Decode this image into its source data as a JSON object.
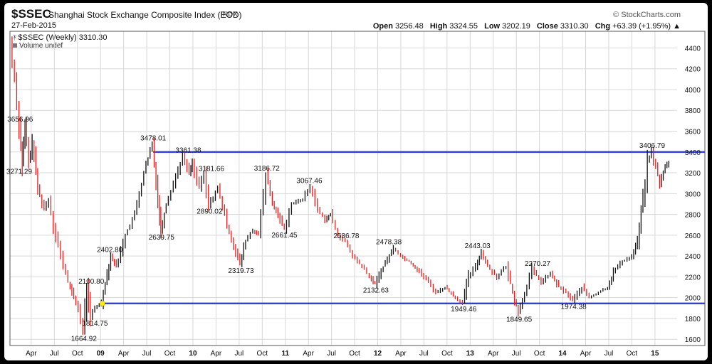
{
  "header": {
    "symbol": "$SSEC",
    "name": "Shanghai Stock Exchange Composite Index (EOD)",
    "exchange": "INDX",
    "date": "27-Feb-2015",
    "brand": "© StockCharts.com",
    "open_label": "Open",
    "open_value": "3256.48",
    "high_label": "High",
    "high_value": "3324.55",
    "low_label": "Low",
    "low_value": "3202.19",
    "close_label": "Close",
    "close_value": "3310.30",
    "chg_label": "Chg",
    "chg_value": "+63.39 (+1.95%) ▲",
    "series_label": "$SSEC (Weekly) 3310.30",
    "volume_label": "Volume undef"
  },
  "colors": {
    "up": "#111111",
    "down": "#e41e1e",
    "line": "#2233ee",
    "grid": "#d8d8d8",
    "marker": "#ffee00"
  },
  "chart_data": {
    "type": "line",
    "interval": "weekly",
    "x_ticks": [
      {
        "label": "Apr",
        "t": 2008.25
      },
      {
        "label": "Jul",
        "t": 2008.5
      },
      {
        "label": "Oct",
        "t": 2008.75
      },
      {
        "label": "09",
        "t": 2009.0,
        "bold": true
      },
      {
        "label": "Apr",
        "t": 2009.25
      },
      {
        "label": "Jul",
        "t": 2009.5
      },
      {
        "label": "Oct",
        "t": 2009.75
      },
      {
        "label": "10",
        "t": 2010.0,
        "bold": true
      },
      {
        "label": "Apr",
        "t": 2010.25
      },
      {
        "label": "Jul",
        "t": 2010.5
      },
      {
        "label": "Oct",
        "t": 2010.75
      },
      {
        "label": "11",
        "t": 2011.0,
        "bold": true
      },
      {
        "label": "Apr",
        "t": 2011.25
      },
      {
        "label": "Jul",
        "t": 2011.5
      },
      {
        "label": "Oct",
        "t": 2011.75
      },
      {
        "label": "12",
        "t": 2012.0,
        "bold": true
      },
      {
        "label": "Apr",
        "t": 2012.25
      },
      {
        "label": "Jul",
        "t": 2012.5
      },
      {
        "label": "Oct",
        "t": 2012.75
      },
      {
        "label": "13",
        "t": 2013.0,
        "bold": true
      },
      {
        "label": "Apr",
        "t": 2013.25
      },
      {
        "label": "Jul",
        "t": 2013.5
      },
      {
        "label": "Oct",
        "t": 2013.75
      },
      {
        "label": "14",
        "t": 2014.0,
        "bold": true
      },
      {
        "label": "Apr",
        "t": 2014.25
      },
      {
        "label": "Jul",
        "t": 2014.5
      },
      {
        "label": "Oct",
        "t": 2014.75
      },
      {
        "label": "15",
        "t": 2015.0,
        "bold": true
      }
    ],
    "x_range": [
      2008.02,
      2015.24
    ],
    "y_ticks": [
      1600,
      1800,
      2000,
      2200,
      2400,
      2600,
      2800,
      3000,
      3200,
      3400,
      3600,
      3800,
      4000,
      4200,
      4400
    ],
    "ylim": [
      1540,
      4560
    ],
    "grid": true,
    "price_path": [
      [
        2008.03,
        4450
      ],
      [
        2008.08,
        4100
      ],
      [
        2008.13,
        3656.96
      ],
      [
        2008.16,
        3271.29
      ],
      [
        2008.19,
        3650
      ],
      [
        2008.23,
        3300
      ],
      [
        2008.27,
        3500
      ],
      [
        2008.33,
        3050
      ],
      [
        2008.4,
        2850
      ],
      [
        2008.45,
        2950
      ],
      [
        2008.5,
        2700
      ],
      [
        2008.58,
        2400
      ],
      [
        2008.66,
        2150
      ],
      [
        2008.72,
        2000
      ],
      [
        2008.77,
        1900
      ],
      [
        2008.82,
        1664.92
      ],
      [
        2008.86,
        2100.8
      ],
      [
        2008.9,
        1814.75
      ],
      [
        2008.95,
        1900
      ],
      [
        2009.02,
        1960
      ],
      [
        2009.06,
        2150
      ],
      [
        2009.12,
        2402.8
      ],
      [
        2009.18,
        2300
      ],
      [
        2009.28,
        2600
      ],
      [
        2009.38,
        2800
      ],
      [
        2009.48,
        3200
      ],
      [
        2009.57,
        3478.01
      ],
      [
        2009.63,
        2950
      ],
      [
        2009.66,
        2639.75
      ],
      [
        2009.72,
        2900
      ],
      [
        2009.8,
        3100
      ],
      [
        2009.9,
        3361.38
      ],
      [
        2009.97,
        3200
      ],
      [
        2010.0,
        3300
      ],
      [
        2010.08,
        3050
      ],
      [
        2010.13,
        3181.66
      ],
      [
        2010.18,
        2890.02
      ],
      [
        2010.28,
        3050
      ],
      [
        2010.38,
        2700
      ],
      [
        2010.45,
        2500
      ],
      [
        2010.52,
        2319.73
      ],
      [
        2010.58,
        2550
      ],
      [
        2010.66,
        2650
      ],
      [
        2010.72,
        2600
      ],
      [
        2010.8,
        3186.72
      ],
      [
        2010.87,
        2900
      ],
      [
        2010.93,
        2800
      ],
      [
        2011.0,
        2661.45
      ],
      [
        2011.08,
        2900
      ],
      [
        2011.2,
        2950
      ],
      [
        2011.28,
        3067.46
      ],
      [
        2011.36,
        2850
      ],
      [
        2011.44,
        2750
      ],
      [
        2011.5,
        2800
      ],
      [
        2011.58,
        2600
      ],
      [
        2011.66,
        2536.78
      ],
      [
        2011.74,
        2400
      ],
      [
        2011.84,
        2300
      ],
      [
        2011.92,
        2200
      ],
      [
        2011.98,
        2132.63
      ],
      [
        2012.07,
        2300
      ],
      [
        2012.18,
        2478.38
      ],
      [
        2012.26,
        2400
      ],
      [
        2012.35,
        2350
      ],
      [
        2012.46,
        2250
      ],
      [
        2012.56,
        2150
      ],
      [
        2012.64,
        2050
      ],
      [
        2012.74,
        2100
      ],
      [
        2012.85,
        2000
      ],
      [
        2012.93,
        1949.46
      ],
      [
        2012.99,
        2200
      ],
      [
        2013.07,
        2300
      ],
      [
        2013.13,
        2443.03
      ],
      [
        2013.2,
        2300
      ],
      [
        2013.3,
        2200
      ],
      [
        2013.4,
        2300
      ],
      [
        2013.47,
        2050
      ],
      [
        2013.53,
        1849.65
      ],
      [
        2013.6,
        2050
      ],
      [
        2013.68,
        2270.27
      ],
      [
        2013.78,
        2150
      ],
      [
        2013.88,
        2230
      ],
      [
        2013.97,
        2100
      ],
      [
        2014.05,
        2050
      ],
      [
        2014.12,
        1974.38
      ],
      [
        2014.22,
        2100
      ],
      [
        2014.3,
        2000
      ],
      [
        2014.4,
        2050
      ],
      [
        2014.5,
        2100
      ],
      [
        2014.56,
        2250
      ],
      [
        2014.66,
        2350
      ],
      [
        2014.76,
        2400
      ],
      [
        2014.82,
        2550
      ],
      [
        2014.88,
        2950
      ],
      [
        2014.93,
        3300
      ],
      [
        2014.97,
        3406.79
      ],
      [
        2015.02,
        3250
      ],
      [
        2015.06,
        3100
      ],
      [
        2015.12,
        3250
      ],
      [
        2015.16,
        3310.3
      ]
    ],
    "annotations": [
      {
        "label": "3656.96",
        "t": 2008.13,
        "v": 3656.96,
        "pos": "above"
      },
      {
        "label": "3271.29",
        "t": 2008.12,
        "v": 3271.29,
        "pos": "below"
      },
      {
        "label": "3478.01",
        "t": 2009.57,
        "v": 3478.01,
        "pos": "above"
      },
      {
        "label": "3361.38",
        "t": 2009.95,
        "v": 3361.38,
        "pos": "above"
      },
      {
        "label": "3181.66",
        "t": 2010.2,
        "v": 3181.66,
        "pos": "above"
      },
      {
        "label": "3186.72",
        "t": 2010.8,
        "v": 3186.72,
        "pos": "above"
      },
      {
        "label": "3067.46",
        "t": 2011.26,
        "v": 3067.46,
        "pos": "above"
      },
      {
        "label": "2890.02",
        "t": 2010.18,
        "v": 2890.02,
        "pos": "below"
      },
      {
        "label": "2639.75",
        "t": 2009.66,
        "v": 2639.75,
        "pos": "below"
      },
      {
        "label": "2661.45",
        "t": 2010.99,
        "v": 2661.45,
        "pos": "below"
      },
      {
        "label": "2536.78",
        "t": 2011.66,
        "v": 2536.78,
        "pos": "above"
      },
      {
        "label": "2478.38",
        "t": 2012.12,
        "v": 2478.38,
        "pos": "above"
      },
      {
        "label": "2443.03",
        "t": 2013.08,
        "v": 2443.03,
        "pos": "above"
      },
      {
        "label": "2402.80",
        "t": 2009.1,
        "v": 2402.8,
        "pos": "above"
      },
      {
        "label": "2319.73",
        "t": 2010.52,
        "v": 2319.73,
        "pos": "below"
      },
      {
        "label": "2270.27",
        "t": 2013.73,
        "v": 2270.27,
        "pos": "above"
      },
      {
        "label": "2132.63",
        "t": 2011.98,
        "v": 2132.63,
        "pos": "below"
      },
      {
        "label": "2100.80",
        "t": 2008.9,
        "v": 2100.8,
        "pos": "above"
      },
      {
        "label": "1949.46",
        "t": 2012.93,
        "v": 1949.46,
        "pos": "below"
      },
      {
        "label": "1849.65",
        "t": 2013.53,
        "v": 1849.65,
        "pos": "below"
      },
      {
        "label": "1974.38",
        "t": 2014.12,
        "v": 1974.38,
        "pos": "below"
      },
      {
        "label": "1814.75",
        "t": 2008.94,
        "v": 1814.75,
        "pos": "below"
      },
      {
        "label": "1664.92",
        "t": 2008.82,
        "v": 1664.92,
        "pos": "below"
      },
      {
        "label": "3406.79",
        "t": 2014.97,
        "v": 3406.79,
        "pos": "above"
      }
    ],
    "horizontal_lines": [
      {
        "v": 3400,
        "from_t": 2009.57
      },
      {
        "v": 1945,
        "from_t": 2009.02
      }
    ],
    "marker": {
      "t": 2009.02,
      "v": 1945
    }
  }
}
